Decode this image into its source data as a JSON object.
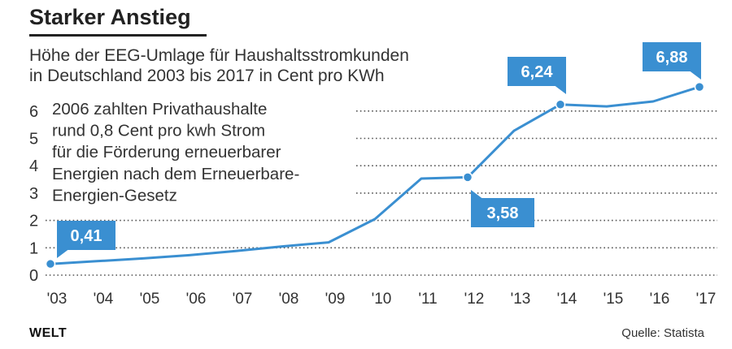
{
  "header": {
    "headline": "Starker Anstieg",
    "subtitle_lines": [
      "Höhe der EEG-Umlage für Haushaltsstromkunden",
      "in Deutschland 2003 bis 2017 in Cent pro KWh"
    ]
  },
  "chart_data": {
    "type": "line",
    "x": [
      "'03",
      "'04",
      "'05",
      "'06",
      "'07",
      "'08",
      "'09",
      "'10",
      "'11",
      "'12",
      "'13",
      "'14",
      "'15",
      "'16",
      "'17"
    ],
    "xlabel": "",
    "ylabel": "",
    "ylim": [
      0,
      6
    ],
    "yticks": [
      0,
      1,
      2,
      3,
      4,
      5,
      6
    ],
    "grid": "dotted horizontal",
    "series": [
      {
        "values": [
          0.41,
          0.51,
          0.61,
          0.73,
          0.88,
          1.05,
          1.2,
          2.05,
          3.53,
          3.58,
          5.28,
          6.24,
          6.17,
          6.35,
          6.88
        ]
      }
    ],
    "callouts": [
      {
        "label": "0,41",
        "index": 0
      },
      {
        "label": "3,58",
        "index": 9
      },
      {
        "label": "6,24",
        "index": 11
      },
      {
        "label": "6,88",
        "index": 14
      }
    ],
    "annotation_lines": [
      "2006 zahlten Privathaushalte",
      "rund 0,8 Cent pro kwh Strom",
      "für die Förderung erneuerbarer",
      "Energien nach dem Erneuerbare-",
      "Energien-Gesetz"
    ],
    "colors": {
      "line": "#3a8fd1",
      "callout": "#3a8fd1",
      "grid": "#555555",
      "text": "#333333"
    }
  },
  "footer": {
    "brand": "WELT",
    "source": "Quelle: Statista"
  }
}
